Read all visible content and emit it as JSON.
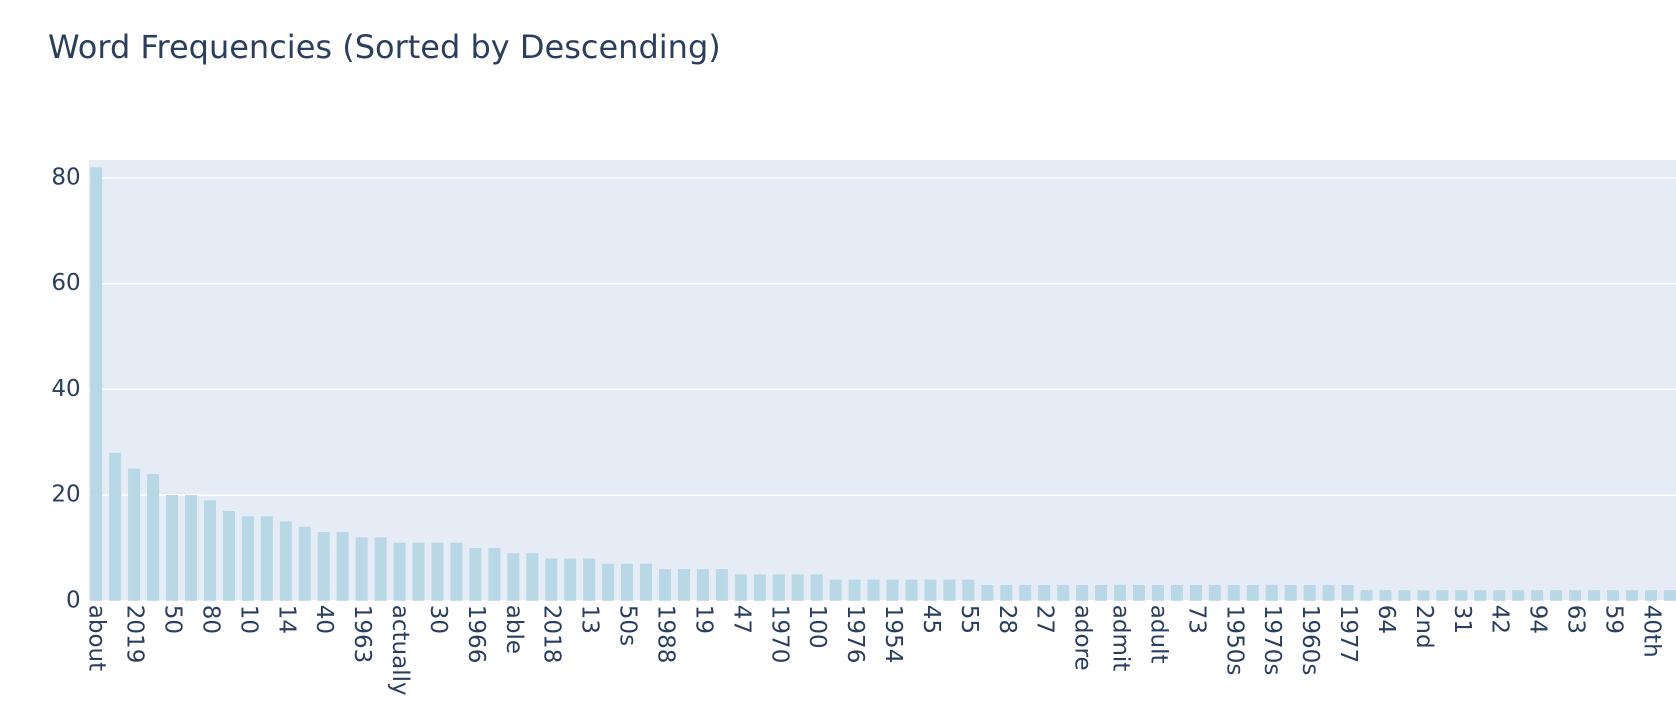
{
  "chart_data": {
    "type": "bar",
    "title": "Word Frequencies (Sorted by Descending)",
    "categories": [
      "about",
      null,
      "2019",
      null,
      "50",
      null,
      "80",
      null,
      "10",
      null,
      "14",
      null,
      "40",
      null,
      "1963",
      null,
      "actually",
      null,
      "30",
      null,
      "1966",
      null,
      "able",
      null,
      "2018",
      null,
      "13",
      null,
      "50s",
      null,
      "1988",
      null,
      "19",
      null,
      "47",
      null,
      "1970",
      null,
      "100",
      null,
      "1976",
      null,
      "1954",
      null,
      "45",
      null,
      "55",
      null,
      "28",
      null,
      "27",
      null,
      "adore",
      null,
      "admit",
      null,
      "adult",
      null,
      "73",
      null,
      "1950s",
      null,
      "1970s",
      null,
      "1960s",
      null,
      "1977",
      null,
      "64",
      null,
      "2nd",
      null,
      "31",
      null,
      "42",
      null,
      "94",
      null,
      "63",
      null,
      "59",
      null,
      "40th",
      null
    ],
    "values": [
      82,
      28,
      25,
      24,
      20,
      20,
      19,
      17,
      16,
      16,
      15,
      14,
      13,
      13,
      12,
      12,
      11,
      11,
      11,
      11,
      10,
      10,
      9,
      9,
      8,
      8,
      8,
      7,
      7,
      7,
      6,
      6,
      6,
      6,
      5,
      5,
      5,
      5,
      5,
      4,
      4,
      4,
      4,
      4,
      4,
      4,
      4,
      3,
      3,
      3,
      3,
      3,
      3,
      3,
      3,
      3,
      3,
      3,
      3,
      3,
      3,
      3,
      3,
      3,
      3,
      3,
      3,
      2,
      2,
      2,
      2,
      2,
      2,
      2,
      2,
      2,
      2,
      2,
      2,
      2,
      2,
      2,
      2,
      2
    ],
    "color": "#b7d8e4",
    "ylim": [
      0,
      83.4
    ],
    "yticks": [
      0,
      20,
      40,
      60,
      80
    ],
    "grid": true
  }
}
